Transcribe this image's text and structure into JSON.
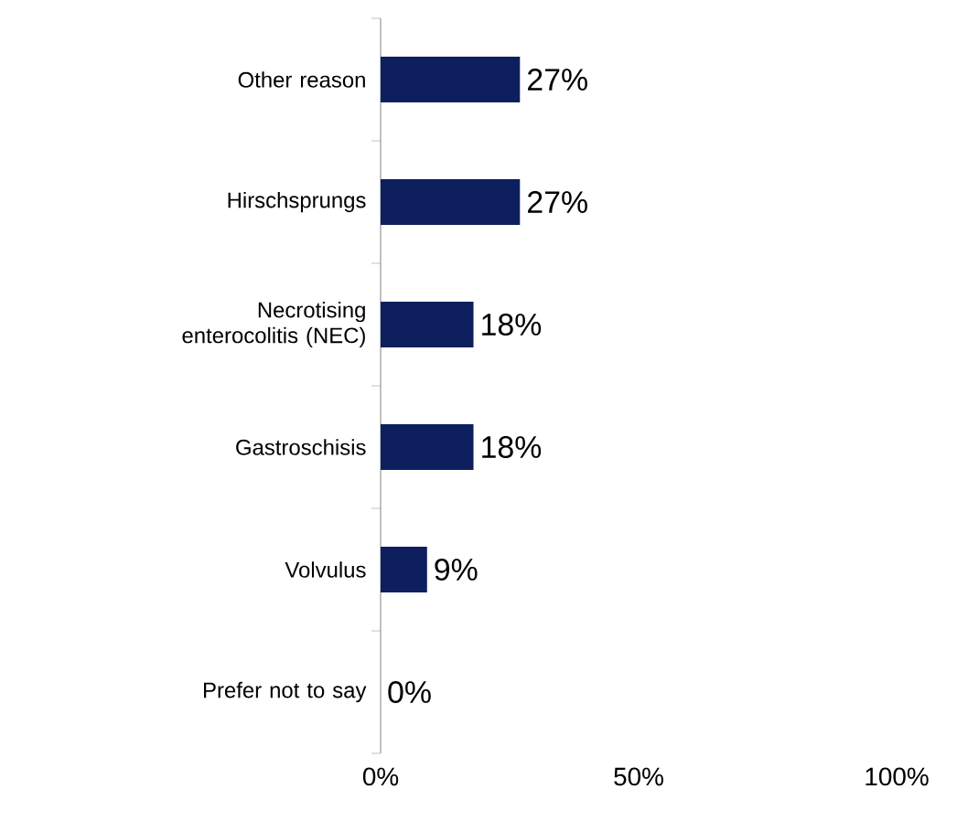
{
  "chart_data": {
    "type": "bar",
    "orientation": "horizontal",
    "categories": [
      "Other reason",
      "Hirschsprungs",
      "Necrotising enterocolitis (NEC)",
      "Gastroschisis",
      "Volvulus",
      "Prefer not to say"
    ],
    "values": [
      27,
      27,
      18,
      18,
      9,
      0
    ],
    "value_labels": [
      "27%",
      "27%",
      "18%",
      "18%",
      "9%",
      "0%"
    ],
    "color": "#0d1f5c",
    "xlim": [
      0,
      100
    ],
    "xticks": [
      {
        "value": 0,
        "label": "0%"
      },
      {
        "value": 50,
        "label": "50%"
      },
      {
        "value": 100,
        "label": "100%"
      }
    ],
    "grid": false
  }
}
